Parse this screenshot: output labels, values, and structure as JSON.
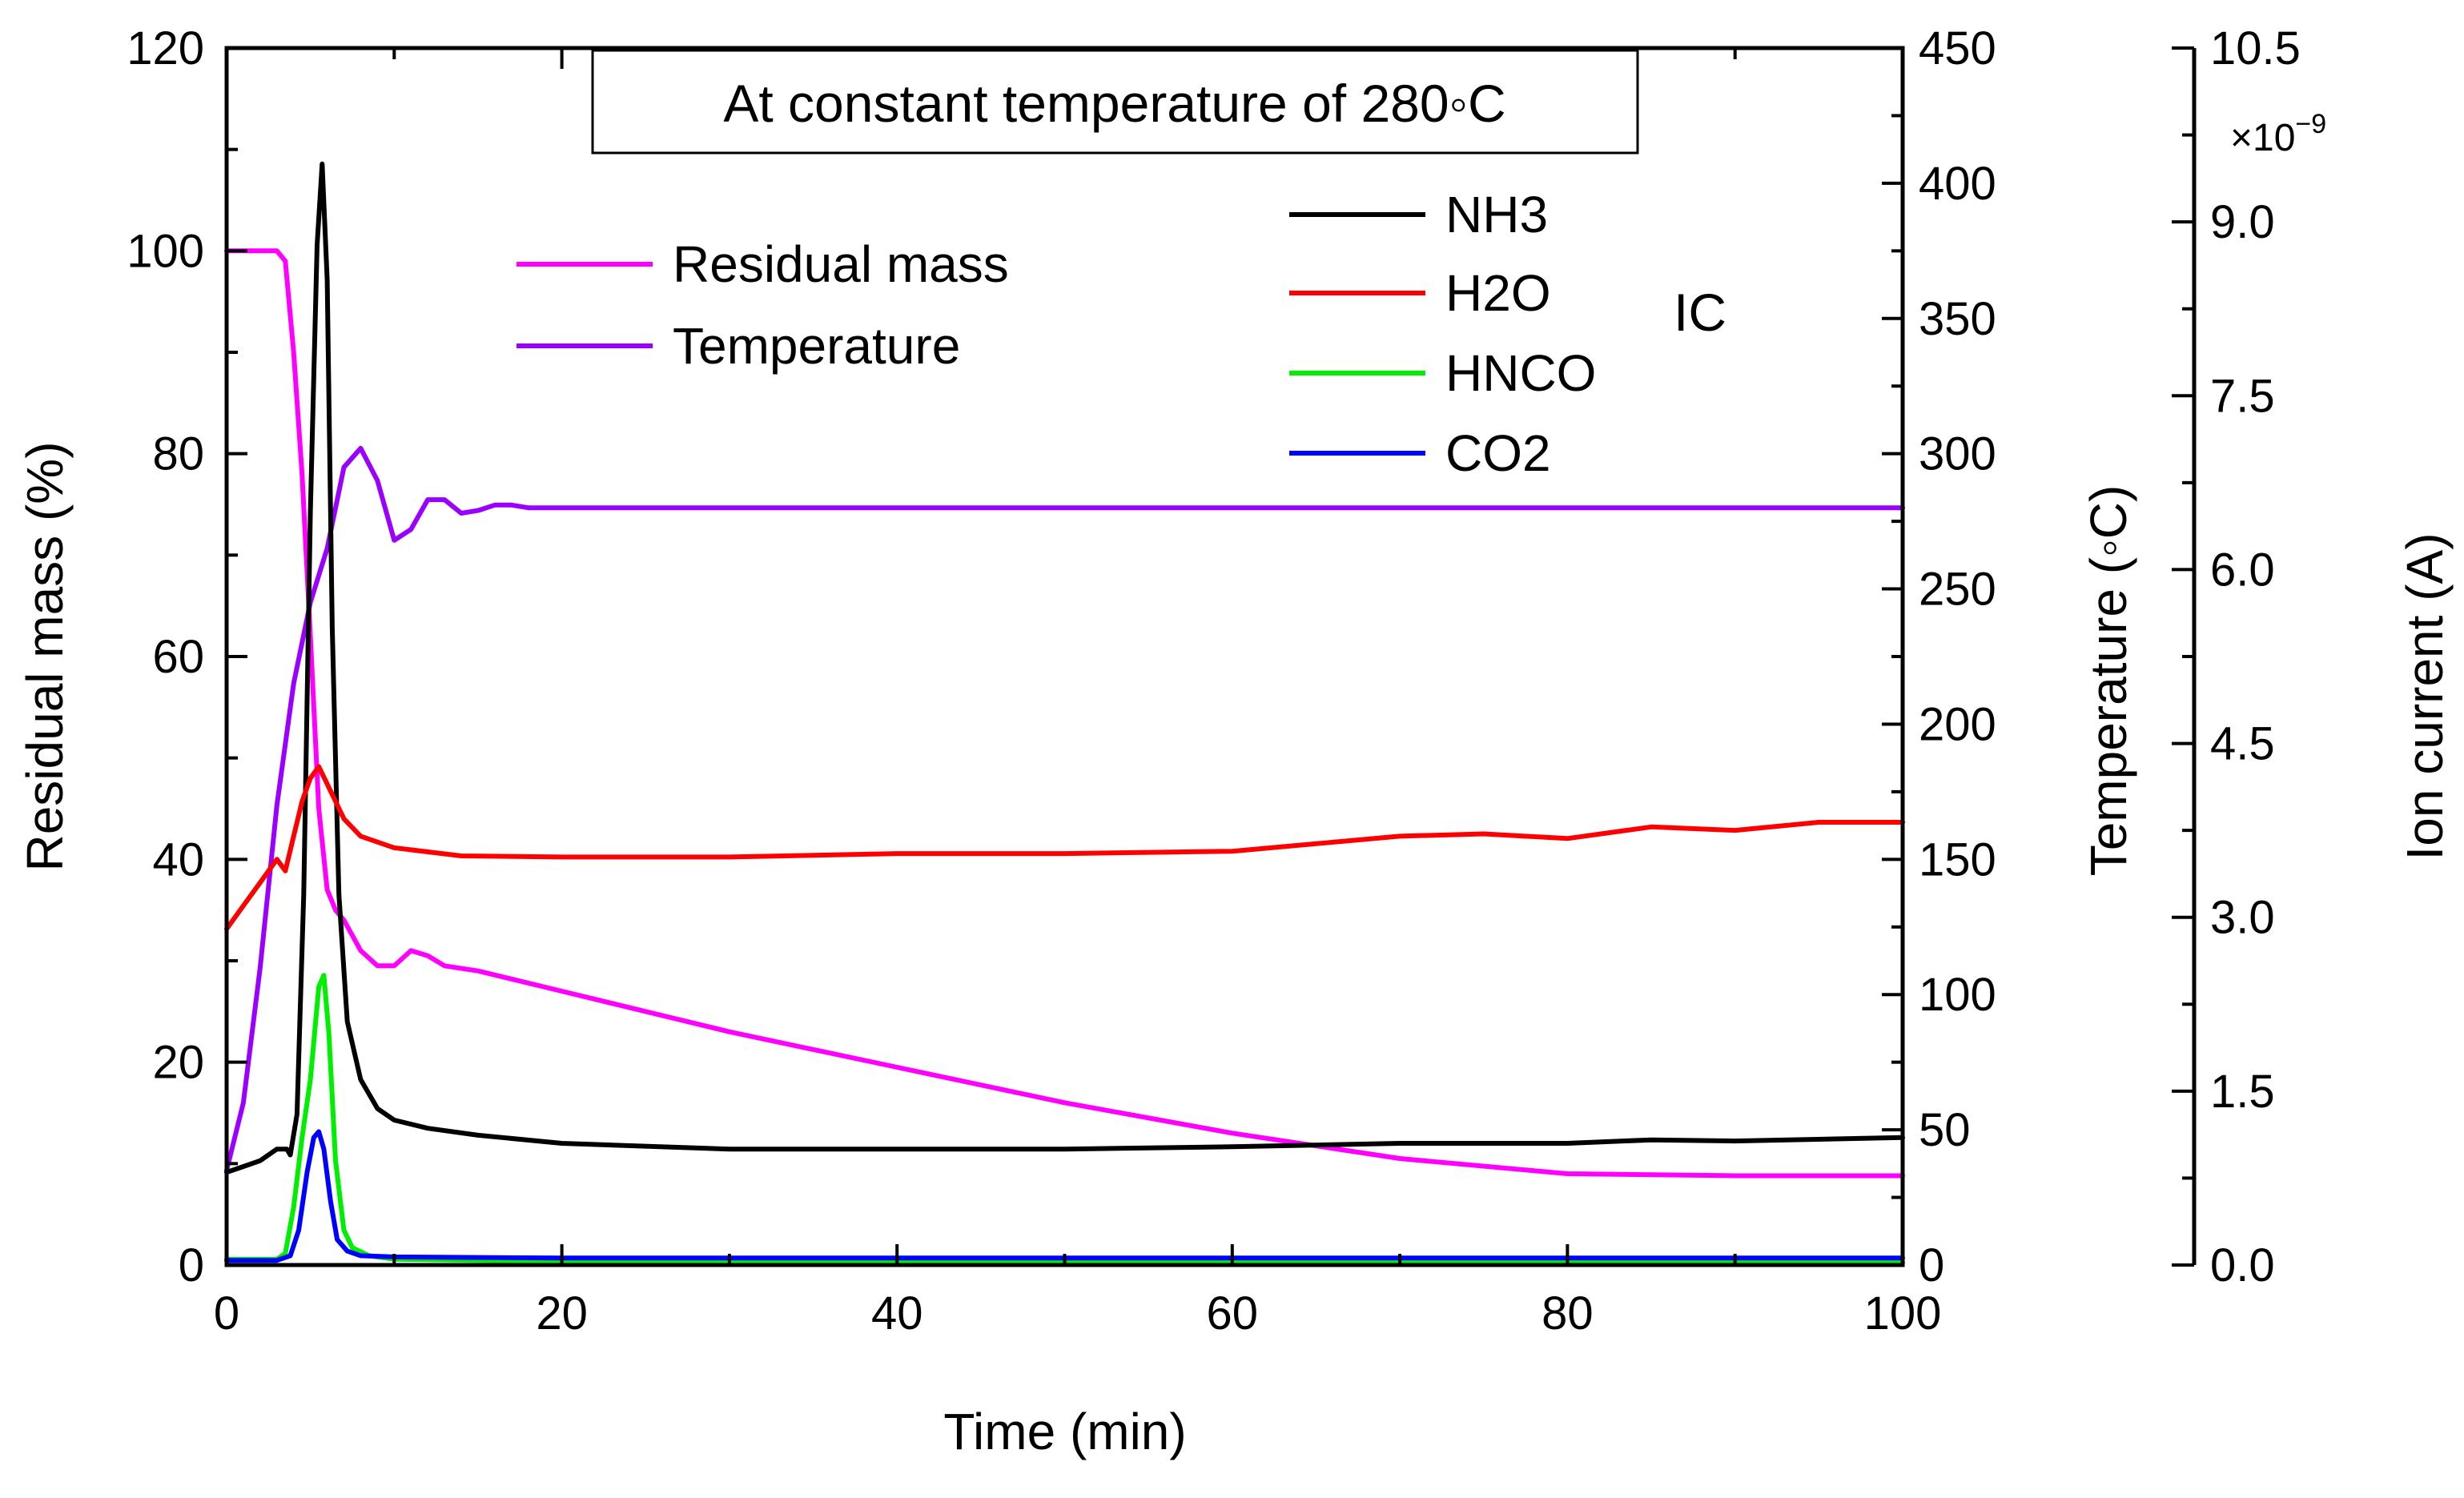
{
  "chart_data": {
    "type": "line",
    "annotation": "At constant temperature of 280◦C",
    "group_label": "IC",
    "x_axis": {
      "label": "Time (min)",
      "range": [
        0,
        100
      ],
      "ticks": [
        "0",
        "20",
        "40",
        "60",
        "80",
        "100"
      ]
    },
    "y_axes": [
      {
        "id": "mass",
        "label": "Residual mass (%)",
        "range": [
          0,
          120
        ],
        "ticks": [
          "0",
          "20",
          "40",
          "60",
          "80",
          "100",
          "120"
        ]
      },
      {
        "id": "temp",
        "label": "Temperature (◦C)",
        "range": [
          0,
          450
        ],
        "ticks": [
          "0",
          "50",
          "100",
          "150",
          "200",
          "250",
          "300",
          "350",
          "400",
          "450"
        ]
      },
      {
        "id": "ion",
        "label": "Ion current (A)",
        "range": [
          0,
          10.5
        ],
        "multiplier_label": "×10",
        "multiplier_exp": "−9",
        "ticks": [
          "0.0",
          "1.5",
          "3.0",
          "4.5",
          "6.0",
          "7.5",
          "9.0",
          "10.5"
        ]
      }
    ],
    "series": [
      {
        "name": "Residual mass",
        "axis": "mass",
        "color": "#ff00ff",
        "points": [
          [
            0,
            100
          ],
          [
            3,
            100
          ],
          [
            3.5,
            99
          ],
          [
            4,
            90
          ],
          [
            4.5,
            78
          ],
          [
            5,
            62
          ],
          [
            5.5,
            45
          ],
          [
            6,
            37
          ],
          [
            6.5,
            35
          ],
          [
            7,
            34
          ],
          [
            8,
            31
          ],
          [
            9,
            29.5
          ],
          [
            10,
            29.5
          ],
          [
            11,
            31
          ],
          [
            12,
            30.5
          ],
          [
            13,
            29.5
          ],
          [
            15,
            29
          ],
          [
            20,
            27
          ],
          [
            30,
            23
          ],
          [
            40,
            19.5
          ],
          [
            50,
            16
          ],
          [
            60,
            13
          ],
          [
            70,
            10.5
          ],
          [
            80,
            9
          ],
          [
            90,
            8.8
          ],
          [
            100,
            8.8
          ]
        ]
      },
      {
        "name": "Temperature",
        "axis": "temp",
        "color": "#9900ff",
        "points": [
          [
            0,
            35
          ],
          [
            1,
            60
          ],
          [
            2,
            110
          ],
          [
            3,
            170
          ],
          [
            4,
            215
          ],
          [
            5,
            245
          ],
          [
            6,
            265
          ],
          [
            7,
            295
          ],
          [
            8,
            302
          ],
          [
            9,
            290
          ],
          [
            10,
            268
          ],
          [
            11,
            272
          ],
          [
            12,
            283
          ],
          [
            13,
            283
          ],
          [
            14,
            278
          ],
          [
            15,
            279
          ],
          [
            16,
            281
          ],
          [
            17,
            281
          ],
          [
            18,
            280
          ],
          [
            20,
            280
          ],
          [
            40,
            280
          ],
          [
            60,
            280
          ],
          [
            80,
            280
          ],
          [
            100,
            280
          ]
        ]
      },
      {
        "name": "NH3",
        "axis": "ion",
        "color": "#000000",
        "points": [
          [
            0,
            0.8
          ],
          [
            1,
            0.85
          ],
          [
            2,
            0.9
          ],
          [
            3,
            1.0
          ],
          [
            3.6,
            1.0
          ],
          [
            3.8,
            0.95
          ],
          [
            4.2,
            1.3
          ],
          [
            4.6,
            3.2
          ],
          [
            5,
            6.5
          ],
          [
            5.4,
            8.8
          ],
          [
            5.7,
            9.5
          ],
          [
            6,
            8.5
          ],
          [
            6.3,
            5.5
          ],
          [
            6.7,
            3.2
          ],
          [
            7.2,
            2.1
          ],
          [
            8,
            1.6
          ],
          [
            9,
            1.35
          ],
          [
            10,
            1.25
          ],
          [
            12,
            1.18
          ],
          [
            15,
            1.12
          ],
          [
            20,
            1.05
          ],
          [
            30,
            1.0
          ],
          [
            40,
            1.0
          ],
          [
            50,
            1.0
          ],
          [
            60,
            1.02
          ],
          [
            70,
            1.05
          ],
          [
            80,
            1.05
          ],
          [
            85,
            1.08
          ],
          [
            90,
            1.07
          ],
          [
            100,
            1.1
          ]
        ]
      },
      {
        "name": "H2O",
        "axis": "ion",
        "color": "#ff0000",
        "points": [
          [
            0,
            2.9
          ],
          [
            1,
            3.1
          ],
          [
            2,
            3.3
          ],
          [
            3,
            3.5
          ],
          [
            3.5,
            3.4
          ],
          [
            4,
            3.7
          ],
          [
            4.5,
            4.0
          ],
          [
            5,
            4.2
          ],
          [
            5.5,
            4.3
          ],
          [
            6,
            4.15
          ],
          [
            7,
            3.85
          ],
          [
            8,
            3.7
          ],
          [
            10,
            3.6
          ],
          [
            14,
            3.53
          ],
          [
            20,
            3.52
          ],
          [
            30,
            3.52
          ],
          [
            40,
            3.55
          ],
          [
            50,
            3.55
          ],
          [
            60,
            3.57
          ],
          [
            70,
            3.7
          ],
          [
            75,
            3.72
          ],
          [
            80,
            3.68
          ],
          [
            85,
            3.78
          ],
          [
            90,
            3.75
          ],
          [
            95,
            3.82
          ],
          [
            100,
            3.82
          ]
        ]
      },
      {
        "name": "HNCO",
        "axis": "ion",
        "color": "#00ee00",
        "points": [
          [
            0,
            0.05
          ],
          [
            3,
            0.05
          ],
          [
            3.5,
            0.1
          ],
          [
            4,
            0.5
          ],
          [
            4.5,
            1.1
          ],
          [
            5,
            1.6
          ],
          [
            5.5,
            2.4
          ],
          [
            5.8,
            2.5
          ],
          [
            6.1,
            2.0
          ],
          [
            6.5,
            0.9
          ],
          [
            7,
            0.3
          ],
          [
            7.5,
            0.15
          ],
          [
            8.5,
            0.08
          ],
          [
            10,
            0.05
          ],
          [
            20,
            0.03
          ],
          [
            40,
            0.03
          ],
          [
            60,
            0.02
          ],
          [
            80,
            0.02
          ],
          [
            100,
            0.02
          ]
        ]
      },
      {
        "name": "CO2",
        "axis": "ion",
        "color": "#0000ff",
        "points": [
          [
            0,
            0.04
          ],
          [
            3,
            0.04
          ],
          [
            3.8,
            0.08
          ],
          [
            4.3,
            0.3
          ],
          [
            4.8,
            0.8
          ],
          [
            5.2,
            1.1
          ],
          [
            5.5,
            1.15
          ],
          [
            5.8,
            1.0
          ],
          [
            6.2,
            0.55
          ],
          [
            6.6,
            0.22
          ],
          [
            7.2,
            0.12
          ],
          [
            8,
            0.08
          ],
          [
            10,
            0.07
          ],
          [
            20,
            0.06
          ],
          [
            40,
            0.06
          ],
          [
            60,
            0.06
          ],
          [
            80,
            0.06
          ],
          [
            100,
            0.06
          ]
        ]
      }
    ]
  }
}
